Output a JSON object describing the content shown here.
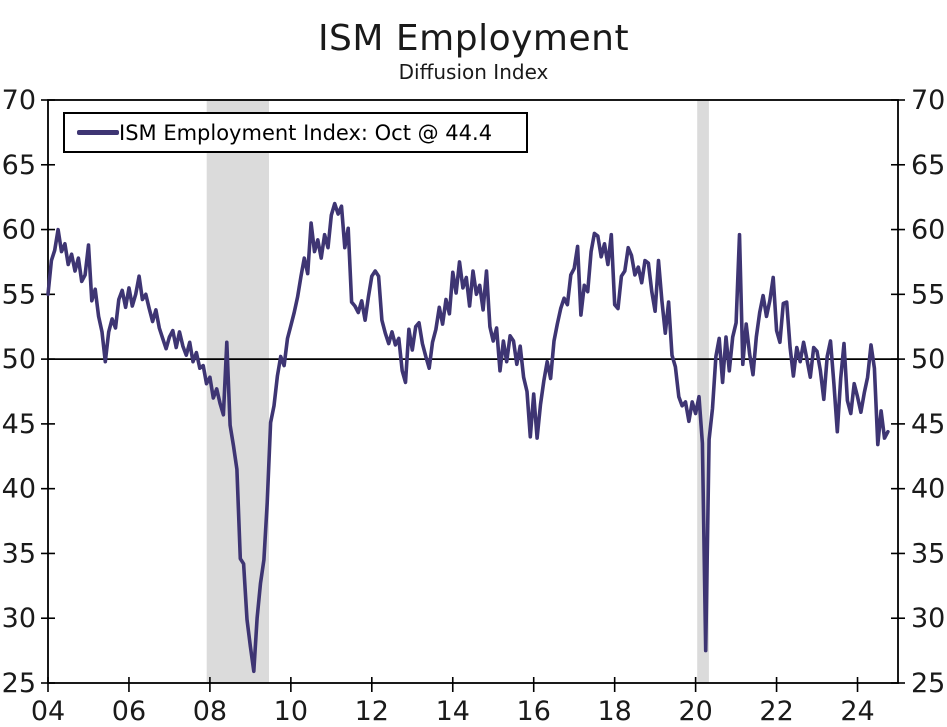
{
  "chart_data": {
    "type": "line",
    "title": "ISM Employment",
    "subtitle": "Diffusion Index",
    "legend": "ISM Employment Index: Oct @ 44.4",
    "latest_point": {
      "month": "Oct",
      "value": 44.4
    },
    "colors": {
      "line": "#3E3573",
      "recession_band": "#DBDBDB",
      "axis": "#000000",
      "reference_line": "#000000",
      "text": "#1a1a1a"
    },
    "y_axis": {
      "min": 25,
      "max": 70,
      "ticks": [
        25,
        30,
        35,
        40,
        45,
        50,
        55,
        60,
        65,
        70
      ],
      "reference_line": 50,
      "labels_on_both_sides": true
    },
    "x_axis": {
      "tick_years": [
        2004,
        2006,
        2008,
        2010,
        2012,
        2014,
        2016,
        2018,
        2020,
        2022,
        2024
      ],
      "labels": [
        "04",
        "06",
        "08",
        "10",
        "12",
        "14",
        "16",
        "18",
        "20",
        "22",
        "24"
      ],
      "domain_start": 2004.0,
      "domain_end": 2025.0
    },
    "recession_bands": [
      {
        "start": 2007.92,
        "end": 2009.46
      },
      {
        "start": 2020.04,
        "end": 2020.33
      }
    ],
    "series": [
      {
        "name": "ISM Employment Index",
        "start_year": 2004,
        "start_month": 1,
        "frequency": "monthly",
        "values": [
          55.0,
          57.6,
          58.4,
          60.0,
          58.3,
          58.9,
          57.3,
          58.1,
          56.8,
          57.8,
          56.0,
          56.5,
          58.8,
          54.5,
          55.4,
          53.3,
          52.1,
          49.8,
          52.1,
          53.1,
          52.4,
          54.6,
          55.3,
          54.0,
          55.5,
          54.1,
          55.0,
          56.4,
          54.6,
          55.0,
          53.9,
          52.9,
          53.8,
          52.4,
          51.6,
          50.8,
          51.7,
          52.2,
          50.9,
          52.1,
          51.0,
          50.3,
          51.3,
          49.8,
          50.5,
          49.3,
          49.5,
          48.1,
          48.6,
          47.0,
          47.7,
          46.6,
          45.7,
          51.3,
          44.9,
          43.3,
          41.5,
          34.6,
          34.2,
          29.9,
          27.8,
          25.9,
          30.0,
          32.7,
          34.5,
          38.9,
          45.1,
          46.4,
          48.7,
          50.2,
          49.5,
          51.6,
          52.6,
          53.6,
          54.8,
          56.4,
          57.8,
          56.6,
          60.5,
          58.3,
          59.2,
          57.8,
          59.6,
          58.6,
          61.1,
          62.0,
          61.2,
          61.8,
          58.6,
          60.1,
          54.4,
          54.1,
          53.6,
          54.5,
          53.0,
          54.8,
          56.4,
          56.8,
          56.4,
          53.0,
          52.0,
          51.2,
          52.1,
          51.1,
          51.6,
          49.1,
          48.2,
          52.3,
          50.7,
          52.5,
          52.8,
          51.2,
          50.2,
          49.3,
          51.3,
          52.3,
          54.0,
          52.7,
          54.6,
          53.5,
          56.7,
          55.1,
          57.5,
          55.5,
          56.3,
          54.1,
          56.8,
          55.0,
          55.7,
          53.8,
          56.8,
          52.5,
          51.4,
          52.4,
          49.1,
          51.4,
          49.8,
          51.8,
          51.4,
          49.6,
          51.0,
          48.6,
          47.5,
          44.0,
          47.3,
          43.9,
          46.5,
          48.3,
          49.8,
          48.5,
          51.4,
          52.7,
          53.9,
          54.7,
          54.2,
          56.5,
          57.0,
          58.7,
          53.4,
          55.7,
          55.2,
          58.3,
          59.7,
          59.5,
          57.9,
          58.9,
          57.3,
          59.6,
          54.2,
          53.9,
          56.4,
          56.8,
          58.6,
          58.0,
          56.5,
          57.1,
          55.9,
          57.6,
          57.4,
          55.2,
          53.7,
          57.6,
          54.5,
          52.0,
          54.4,
          50.3,
          49.4,
          47.1,
          46.4,
          46.7,
          45.2,
          46.7,
          45.8,
          47.1,
          43.5,
          27.5,
          43.8,
          46.2,
          50.2,
          51.6,
          48.2,
          51.7,
          49.1,
          51.7,
          52.8,
          59.6,
          49.6,
          52.7,
          50.4,
          48.8,
          51.7,
          53.6,
          54.9,
          53.3,
          54.5,
          56.3,
          52.2,
          51.3,
          54.3,
          54.4,
          50.9,
          48.7,
          50.9,
          49.8,
          51.3,
          50.0,
          48.6,
          50.9,
          50.6,
          49.1,
          46.9,
          50.2,
          51.4,
          48.1,
          44.4,
          48.5,
          51.2,
          46.8,
          45.8,
          48.1,
          47.1,
          45.9,
          47.4,
          48.6,
          51.1,
          49.3,
          43.4,
          46.0,
          43.9,
          44.4
        ]
      }
    ]
  }
}
